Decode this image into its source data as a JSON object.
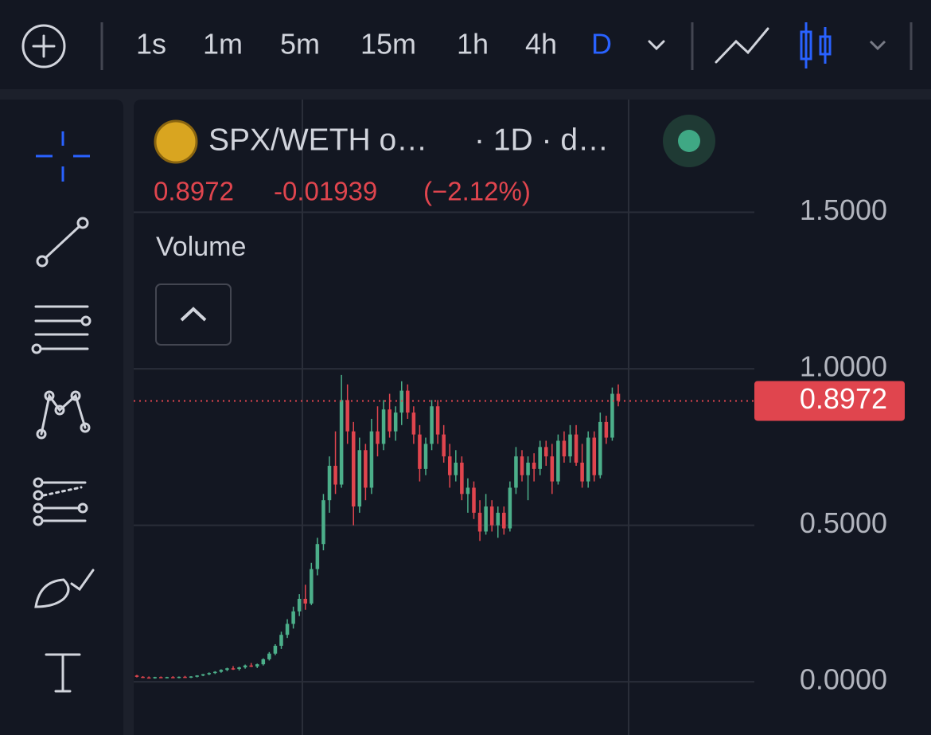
{
  "toolbar": {
    "timeframes": [
      "1s",
      "1m",
      "5m",
      "15m",
      "1h",
      "4h",
      "D"
    ]
  },
  "legend": {
    "symbol": "SPX/WETH o…",
    "interval": "· 1D · d…",
    "change": -0.01939,
    "change_percent": "(−2.12%)",
    "indicator": "Volume"
  },
  "chart_data": {
    "type": "candlestick",
    "open": [
      0.02,
      0.016,
      0.014,
      0.013,
      0.015,
      0.013,
      0.015,
      0.014,
      0.016,
      0.015,
      0.017,
      0.02,
      0.024,
      0.028,
      0.032,
      0.038,
      0.043,
      0.041,
      0.046,
      0.052,
      0.049,
      0.056,
      0.072,
      0.09,
      0.115,
      0.15,
      0.185,
      0.225,
      0.265,
      0.25,
      0.36,
      0.44,
      0.58,
      0.69,
      0.63,
      0.9,
      0.8,
      0.56,
      0.74,
      0.62,
      0.8,
      0.76,
      0.87,
      0.8,
      0.86,
      0.93,
      0.86,
      0.79,
      0.68,
      0.76,
      0.88,
      0.79,
      0.72,
      0.66,
      0.7,
      0.6,
      0.62,
      0.54,
      0.48,
      0.56,
      0.5,
      0.54,
      0.49,
      0.62,
      0.72,
      0.66,
      0.7,
      0.68,
      0.75,
      0.72,
      0.64,
      0.77,
      0.72,
      0.79,
      0.7,
      0.64,
      0.78,
      0.66,
      0.83,
      0.78,
      0.92
    ],
    "high": [
      0.022,
      0.018,
      0.017,
      0.016,
      0.017,
      0.016,
      0.018,
      0.017,
      0.019,
      0.018,
      0.021,
      0.025,
      0.03,
      0.034,
      0.04,
      0.045,
      0.05,
      0.048,
      0.055,
      0.06,
      0.058,
      0.075,
      0.095,
      0.12,
      0.16,
      0.2,
      0.24,
      0.28,
      0.31,
      0.38,
      0.46,
      0.6,
      0.72,
      0.8,
      0.98,
      0.95,
      0.83,
      0.78,
      0.76,
      0.84,
      0.88,
      0.9,
      0.92,
      0.88,
      0.96,
      0.95,
      0.88,
      0.82,
      0.78,
      0.9,
      0.9,
      0.82,
      0.76,
      0.74,
      0.72,
      0.65,
      0.64,
      0.58,
      0.6,
      0.58,
      0.56,
      0.56,
      0.64,
      0.75,
      0.74,
      0.72,
      0.73,
      0.77,
      0.77,
      0.76,
      0.79,
      0.8,
      0.82,
      0.82,
      0.76,
      0.8,
      0.8,
      0.86,
      0.85,
      0.94,
      0.95
    ],
    "low": [
      0.014,
      0.012,
      0.011,
      0.01,
      0.012,
      0.011,
      0.012,
      0.011,
      0.013,
      0.012,
      0.014,
      0.018,
      0.021,
      0.025,
      0.029,
      0.034,
      0.038,
      0.036,
      0.042,
      0.047,
      0.044,
      0.052,
      0.068,
      0.085,
      0.105,
      0.14,
      0.17,
      0.21,
      0.23,
      0.245,
      0.34,
      0.42,
      0.54,
      0.6,
      0.62,
      0.76,
      0.5,
      0.54,
      0.58,
      0.6,
      0.72,
      0.74,
      0.78,
      0.77,
      0.82,
      0.84,
      0.76,
      0.64,
      0.66,
      0.74,
      0.76,
      0.7,
      0.62,
      0.64,
      0.58,
      0.54,
      0.52,
      0.45,
      0.47,
      0.48,
      0.46,
      0.47,
      0.48,
      0.6,
      0.64,
      0.58,
      0.64,
      0.66,
      0.69,
      0.6,
      0.63,
      0.7,
      0.7,
      0.69,
      0.62,
      0.62,
      0.64,
      0.65,
      0.76,
      0.77,
      0.88
    ],
    "close": [
      0.016,
      0.014,
      0.013,
      0.015,
      0.013,
      0.015,
      0.014,
      0.016,
      0.015,
      0.017,
      0.02,
      0.024,
      0.028,
      0.032,
      0.038,
      0.043,
      0.041,
      0.046,
      0.052,
      0.049,
      0.056,
      0.072,
      0.09,
      0.115,
      0.15,
      0.185,
      0.225,
      0.265,
      0.25,
      0.36,
      0.44,
      0.58,
      0.69,
      0.63,
      0.9,
      0.8,
      0.56,
      0.74,
      0.62,
      0.8,
      0.76,
      0.87,
      0.8,
      0.86,
      0.93,
      0.86,
      0.79,
      0.68,
      0.76,
      0.88,
      0.79,
      0.72,
      0.66,
      0.7,
      0.6,
      0.62,
      0.54,
      0.48,
      0.56,
      0.5,
      0.54,
      0.49,
      0.62,
      0.72,
      0.66,
      0.7,
      0.68,
      0.75,
      0.72,
      0.64,
      0.77,
      0.72,
      0.79,
      0.7,
      0.64,
      0.78,
      0.66,
      0.83,
      0.78,
      0.92,
      0.8972
    ],
    "up_color": "#4caf8a",
    "down_color": "#e0454e",
    "ylim": [
      -0.17,
      1.86
    ],
    "yticks": [
      {
        "value": 0,
        "label": "0.0000"
      },
      {
        "value": 0.5,
        "label": "0.5000"
      },
      {
        "value": 1,
        "label": "1.0000"
      },
      {
        "value": 1.5,
        "label": "1.5000"
      }
    ],
    "grid": true
  }
}
